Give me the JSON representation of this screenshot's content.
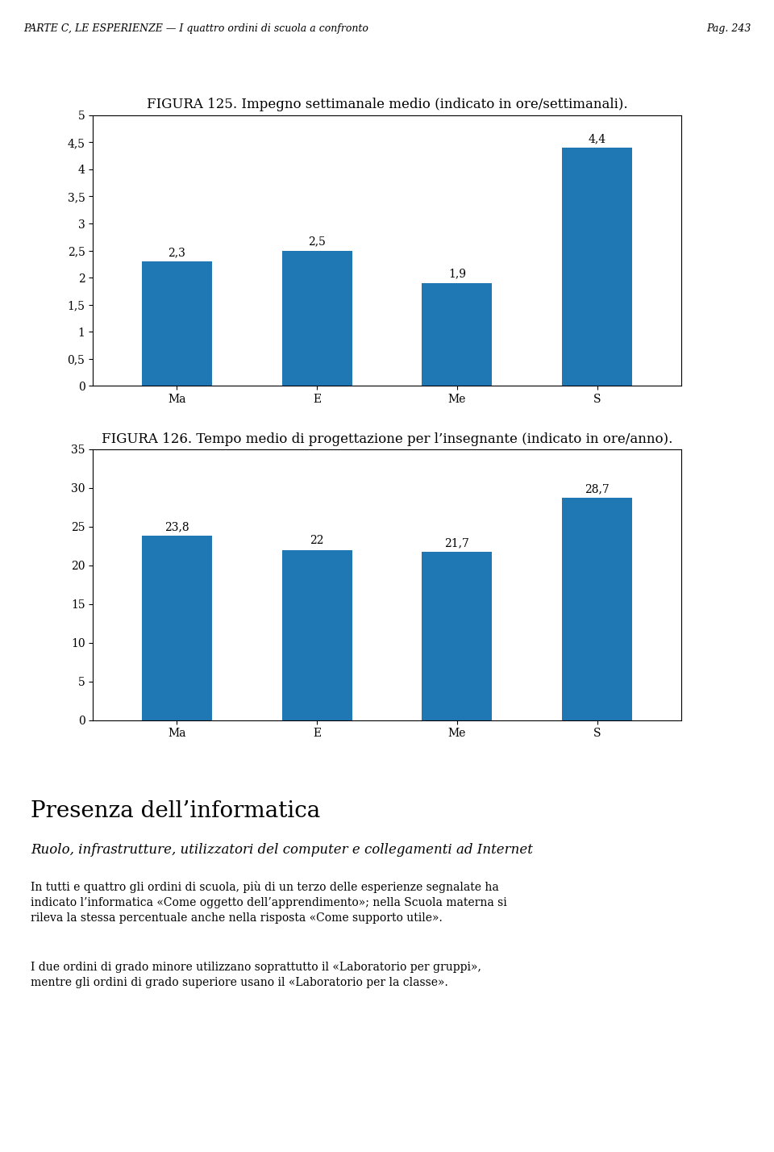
{
  "chart_data": [
    {
      "type": "bar",
      "title": "FIGURA 125. Impegno settimanale medio (indicato in ore/settimanali).",
      "categories": [
        "Ma",
        "E",
        "Me",
        "S"
      ],
      "values": [
        2.3,
        2.5,
        1.9,
        4.4
      ],
      "value_labels": [
        "2,3",
        "2,5",
        "1,9",
        "4,4"
      ],
      "data_labels": true,
      "grid": false,
      "ylim": [
        0,
        5
      ],
      "yticks": [
        0,
        {
          "value": 0.5,
          "label": "0,5"
        },
        1,
        {
          "value": 1.5,
          "label": "1,5"
        },
        2,
        {
          "value": 2.5,
          "label": "2,5"
        },
        3,
        {
          "value": 3.5,
          "label": "3,5"
        },
        4,
        {
          "value": 4.5,
          "label": "4,5"
        },
        5
      ]
    },
    {
      "type": "bar",
      "title": "FIGURA 126. Tempo medio di progettazione per l’insegnante (indicato in ore/anno).",
      "categories": [
        "Ma",
        "E",
        "Me",
        "S"
      ],
      "values": [
        23.8,
        22.0,
        21.7,
        28.7
      ],
      "value_labels": [
        "23,8",
        "22",
        "21,7",
        "28,7"
      ],
      "data_labels": true,
      "grid": false,
      "ylim": [
        0,
        35
      ],
      "yticks": [
        0,
        5,
        10,
        15,
        20,
        25,
        30,
        35
      ]
    }
  ],
  "annotations": [
    "PARTE C, LE ESPERIENZE — I quattro ordini di scuola a confronto",
    "Pag. 243",
    "Presenza dell’informatica",
    "Ruolo, infrastrutture, utilizzatori del computer e collegamenti ad Internet",
    "In tutti e quattro gli ordini di scuola, più di un terzo delle esperienze segnalate ha\nindicato l’informatica «Come oggetto dell’apprendimento»; nella Scuola materna si\nrileva la stessa percentuale anche nella risposta «Come supporto utile».",
    "I due ordini di grado minore utilizzano soprattutto il «Laboratorio per gruppi»,\nmentre gli ordini di grado superiore usano il «Laboratorio per la classe»."
  ]
}
